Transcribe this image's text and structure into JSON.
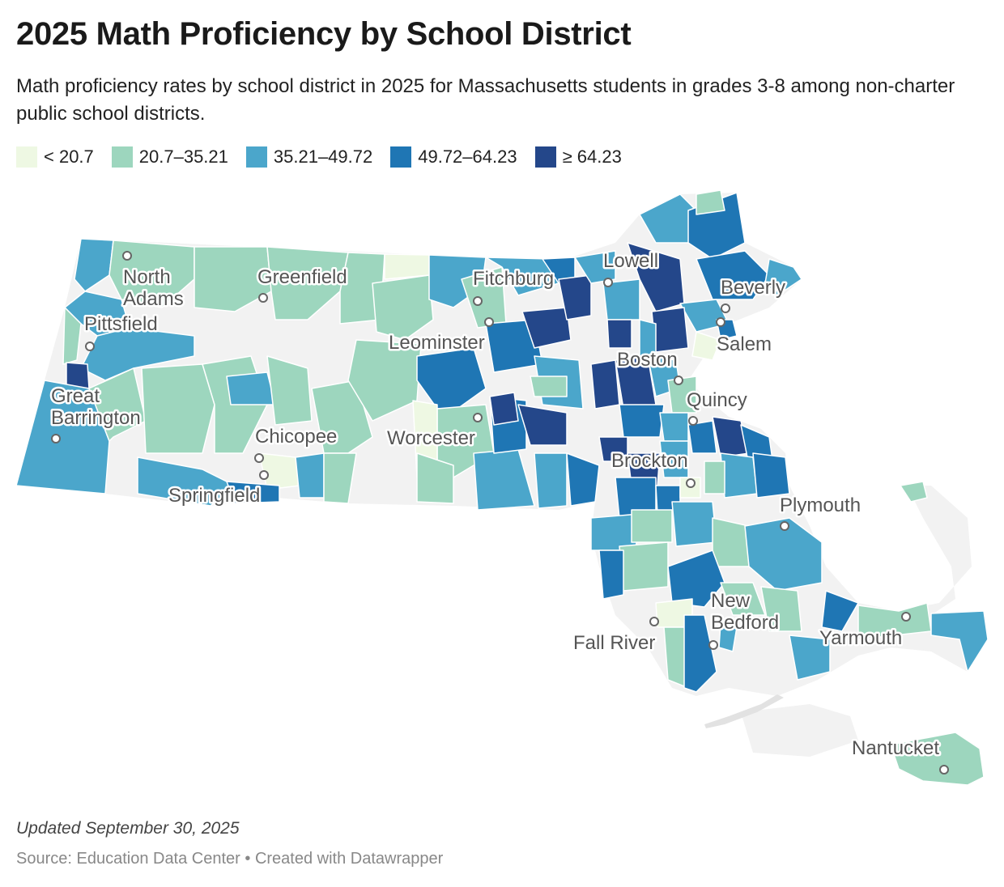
{
  "title": "2025 Math Proficiency by School District",
  "subtitle": "Math proficiency rates by school district in 2025 for Massachusetts students in grades 3-8 among non-charter public school districts.",
  "legend": [
    {
      "label": "< 20.7",
      "color": "#eef8e3"
    },
    {
      "label": "20.7–35.21",
      "color": "#9dd6be"
    },
    {
      "label": "35.21–49.72",
      "color": "#4ba6cb"
    },
    {
      "label": "49.72–64.23",
      "color": "#1f76b4"
    },
    {
      "label": "≥ 64.23",
      "color": "#24478a"
    }
  ],
  "no_data_color": "#f2f2f2",
  "cities": [
    {
      "name": "North Adams"
    },
    {
      "name": "Greenfield"
    },
    {
      "name": "Fitchburg"
    },
    {
      "name": "Lowell"
    },
    {
      "name": "Beverly"
    },
    {
      "name": "Salem"
    },
    {
      "name": "Pittsfield"
    },
    {
      "name": "Leominster"
    },
    {
      "name": "Boston"
    },
    {
      "name": "Quincy"
    },
    {
      "name": "Great Barrington"
    },
    {
      "name": "Chicopee"
    },
    {
      "name": "Worcester"
    },
    {
      "name": "Brockton"
    },
    {
      "name": "Springfield"
    },
    {
      "name": "Plymouth"
    },
    {
      "name": "New Bedford"
    },
    {
      "name": "Fall River"
    },
    {
      "name": "Yarmouth"
    },
    {
      "name": "Nantucket"
    }
  ],
  "footer": {
    "updated": "Updated September 30, 2025",
    "source": "Source: Education Data Center • Created with Datawrapper"
  }
}
